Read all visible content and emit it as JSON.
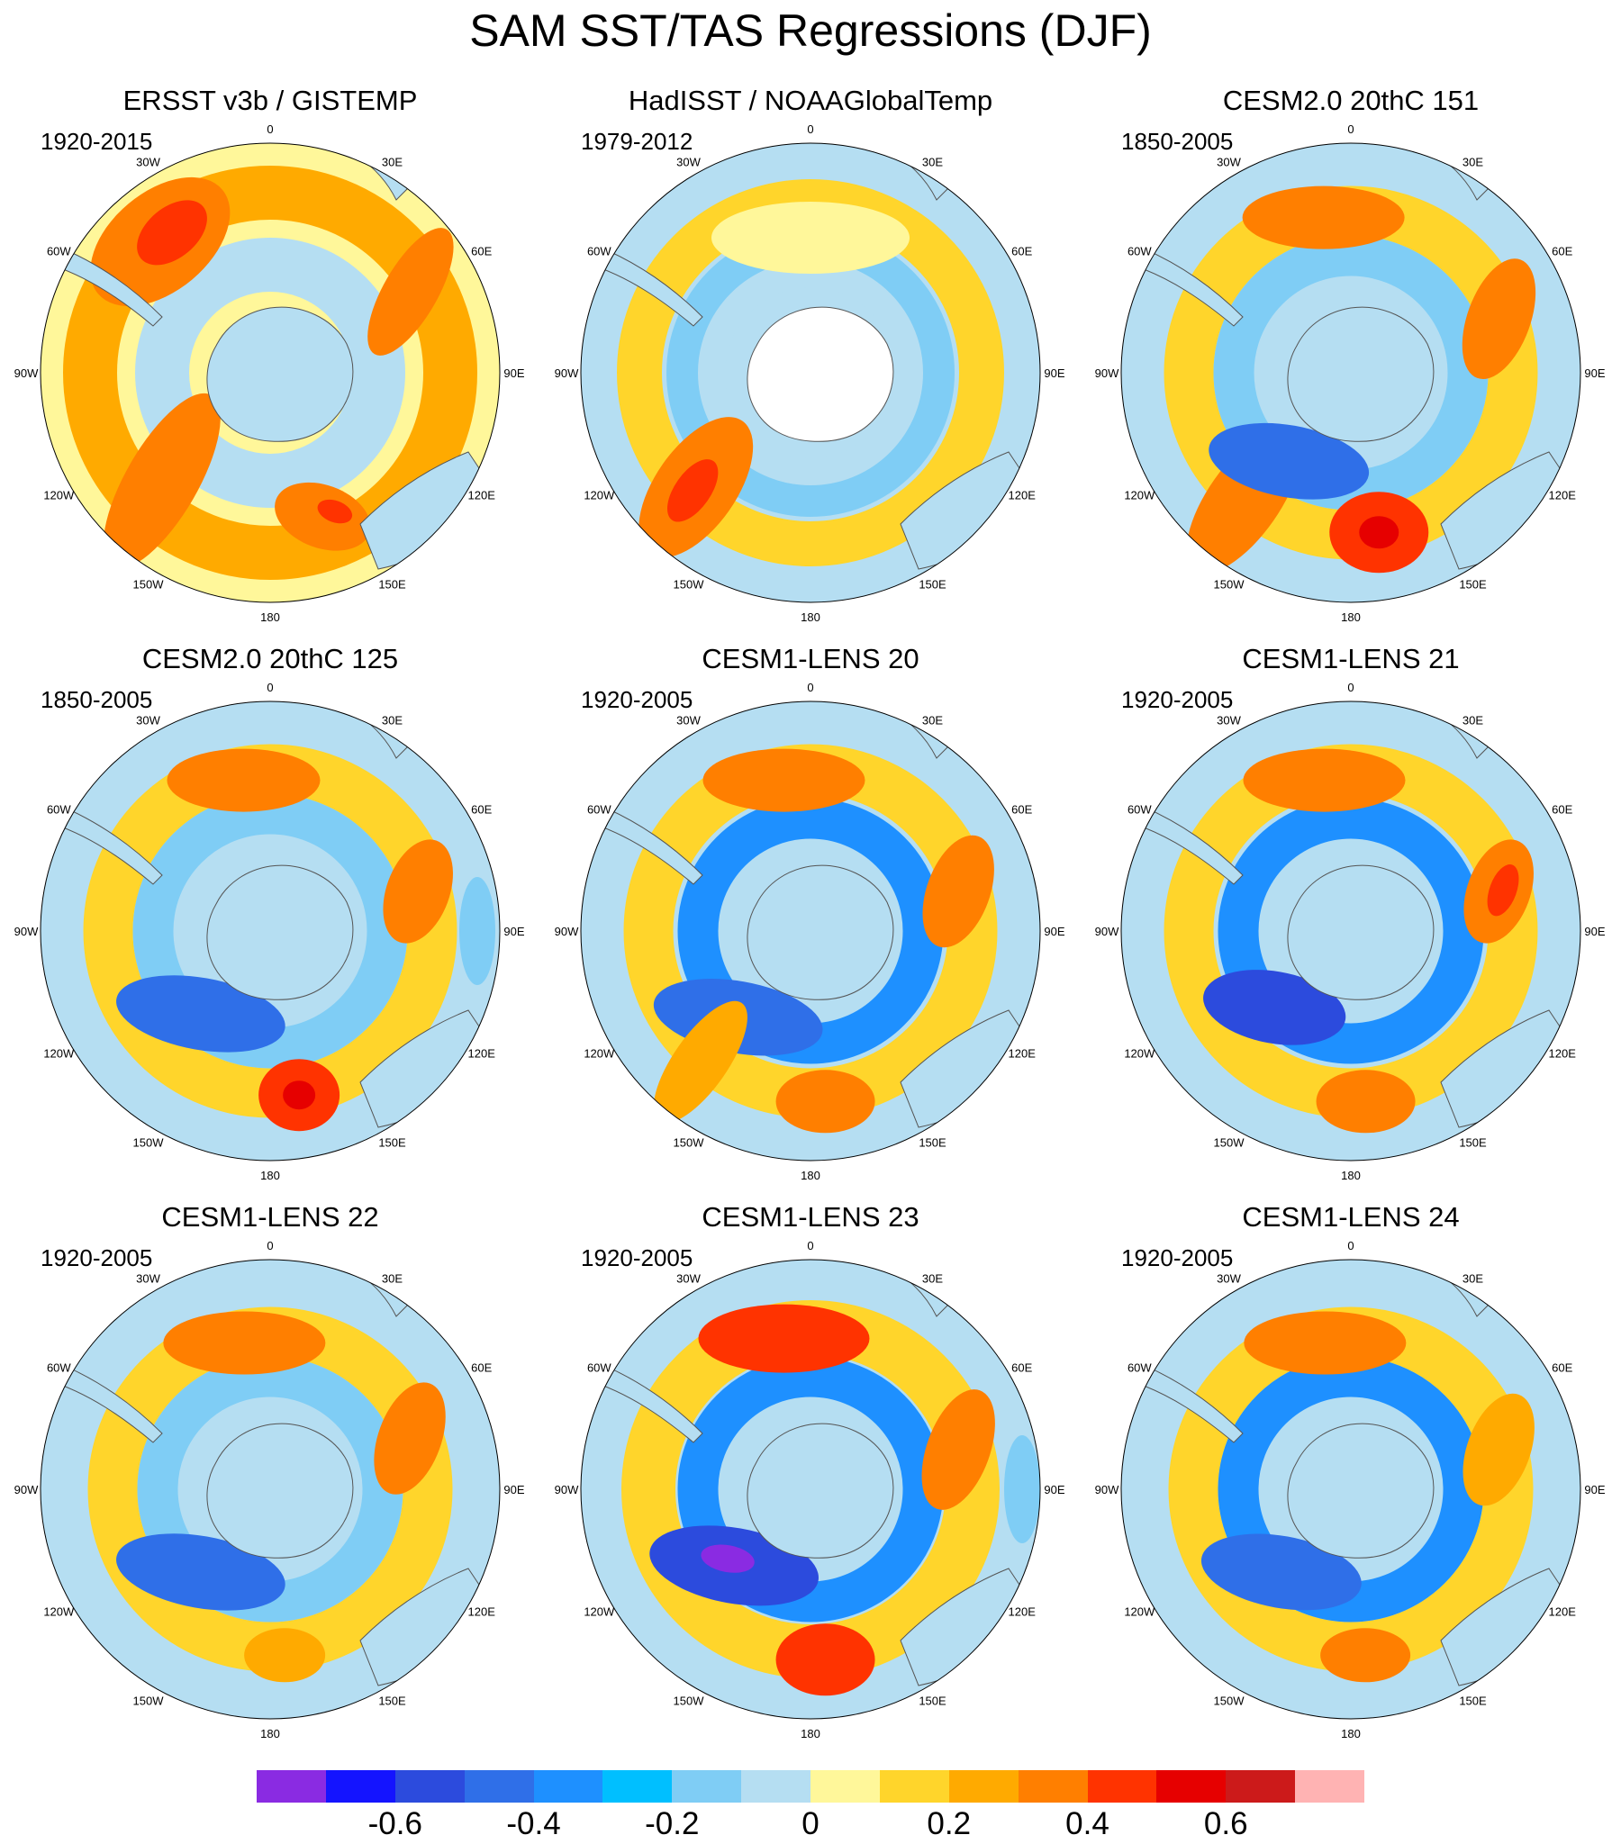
{
  "title": "SAM SST/TAS Regressions (DJF)",
  "panels": [
    {
      "title": "ERSST v3b / GISTEMP",
      "period": "1920-2015"
    },
    {
      "title": "HadISST / NOAAGlobalTemp",
      "period": "1979-2012"
    },
    {
      "title": "CESM2.0 20thC 151",
      "period": "1850-2005"
    },
    {
      "title": "CESM2.0 20thC 125",
      "period": "1850-2005"
    },
    {
      "title": "CESM1-LENS 20",
      "period": "1920-2005"
    },
    {
      "title": "CESM1-LENS 21",
      "period": "1920-2005"
    },
    {
      "title": "CESM1-LENS 22",
      "period": "1920-2005"
    },
    {
      "title": "CESM1-LENS 23",
      "period": "1920-2005"
    },
    {
      "title": "CESM1-LENS 24",
      "period": "1920-2005"
    }
  ],
  "longitude_labels": [
    "0",
    "30E",
    "60E",
    "90E",
    "120E",
    "150E",
    "180",
    "150W",
    "120W",
    "90W",
    "60W",
    "30W"
  ],
  "colorbar": {
    "colors": [
      "#8a2be2",
      "#1414ff",
      "#2c4bdd",
      "#2f6fe8",
      "#1e90ff",
      "#00bfff",
      "#7fcdf5",
      "#b5def2",
      "#fff79a",
      "#ffd52b",
      "#ffaa00",
      "#ff7f00",
      "#ff3300",
      "#e60000",
      "#cc1a1a",
      "#ffb3b3"
    ],
    "tick_labels": [
      "-0.6",
      "-0.4",
      "-0.2",
      "0",
      "0.2",
      "0.4",
      "0.6"
    ],
    "tick_values": [
      -0.6,
      -0.4,
      -0.2,
      0,
      0.2,
      0.4,
      0.6
    ],
    "min": -0.8,
    "max": 0.8
  }
}
